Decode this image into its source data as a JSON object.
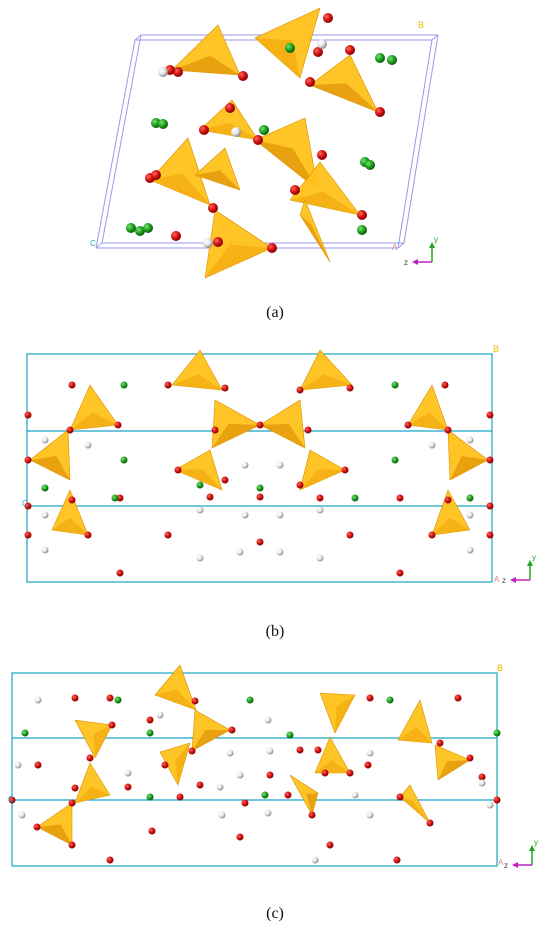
{
  "figure": {
    "panels": [
      {
        "caption": "(a)",
        "corner_label": "B",
        "origin_label": "C",
        "end_label": "A",
        "axis_labels": [
          "y",
          "z"
        ]
      },
      {
        "caption": "(b)",
        "corner_label": "B",
        "origin_label": "C",
        "end_label": "A",
        "axis_labels": [
          "y",
          "z"
        ]
      },
      {
        "caption": "(c)",
        "corner_label": "B",
        "origin_label": "C",
        "end_label": "A",
        "axis_labels": [
          "y",
          "z"
        ]
      }
    ],
    "colors": {
      "cell_edge_a": "#9a9ae6",
      "cell_edge_bc": "#1ba3c6",
      "tetrahedron_light": "#ffc21a",
      "tetrahedron_dark": "#e59b0c",
      "oxygen_atom": "#d41414",
      "green_atom": "#1fa41f",
      "white_atom": "#e6e6e6",
      "axis_y": "#1fa41f",
      "axis_z": "#c020c0",
      "corner_label": "#e8c000"
    }
  }
}
